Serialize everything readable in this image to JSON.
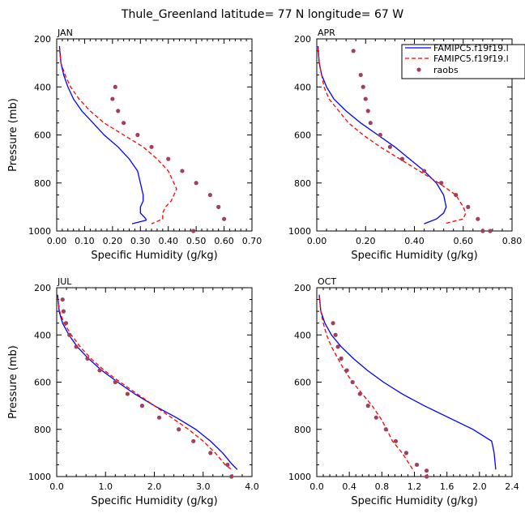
{
  "figure": {
    "title": "Thule_Greenland   latitude= 77 N longitude= 67 W"
  },
  "legend": {
    "entries": [
      {
        "label": "FAMIPC5.f19f19.l",
        "color": "#0000ff",
        "style": "solid"
      },
      {
        "label": "FAMIPC5.f19f19.l",
        "color": "#ff0000",
        "style": "dashed"
      },
      {
        "label": "raobs",
        "color": "#a0405a",
        "style": "dots"
      }
    ]
  },
  "chart_data": [
    {
      "type": "line",
      "panel": "JAN",
      "title": "JAN",
      "xlabel": "Specific Humidity (g/kg)",
      "ylabel": "Pressure (mb)",
      "xlim": [
        0,
        0.7
      ],
      "ylim": [
        1000,
        200
      ],
      "xticks": [
        "0.00",
        "0.10",
        "0.20",
        "0.30",
        "0.40",
        "0.50",
        "0.60",
        "0.70"
      ],
      "yticks": [
        "200",
        "400",
        "600",
        "800",
        "1000"
      ],
      "series": [
        {
          "name": "FAMIPC5.f19f19.l (solid)",
          "color": "#0000ff",
          "dash": "solid",
          "x": [
            0.01,
            0.015,
            0.025,
            0.04,
            0.06,
            0.09,
            0.13,
            0.17,
            0.22,
            0.26,
            0.29,
            0.3,
            0.31,
            0.31,
            0.3,
            0.3,
            0.31,
            0.32,
            0.32,
            0.27
          ],
          "y": [
            230,
            300,
            350,
            400,
            450,
            500,
            550,
            600,
            650,
            700,
            750,
            800,
            850,
            875,
            900,
            925,
            937,
            950,
            955,
            970
          ]
        },
        {
          "name": "FAMIPC5.f19f19.l (dashed)",
          "color": "#ff0000",
          "dash": "dashed",
          "x": [
            0.01,
            0.015,
            0.03,
            0.05,
            0.08,
            0.12,
            0.17,
            0.24,
            0.31,
            0.36,
            0.4,
            0.42,
            0.43,
            0.42,
            0.41,
            0.39,
            0.38,
            0.38,
            0.34
          ],
          "y": [
            240,
            300,
            350,
            400,
            450,
            500,
            550,
            600,
            650,
            700,
            750,
            800,
            825,
            850,
            875,
            900,
            925,
            950,
            970
          ]
        },
        {
          "name": "raobs",
          "color": "#a0405a",
          "dash": "dots",
          "x": [
            0.21,
            0.2,
            0.22,
            0.24,
            0.29,
            0.34,
            0.4,
            0.45,
            0.5,
            0.55,
            0.58,
            0.6,
            0.49
          ],
          "y": [
            400,
            450,
            500,
            550,
            600,
            650,
            700,
            750,
            800,
            850,
            900,
            950,
            1000
          ]
        }
      ]
    },
    {
      "type": "line",
      "panel": "APR",
      "title": "APR",
      "xlabel": "Specific Humidity (g/kg)",
      "ylabel": "",
      "xlim": [
        0,
        0.8
      ],
      "ylim": [
        1000,
        200
      ],
      "xticks": [
        "0.00",
        "0.20",
        "0.40",
        "0.60",
        "0.80"
      ],
      "yticks": [
        "200",
        "400",
        "600",
        "800",
        "1000"
      ],
      "series": [
        {
          "name": "FAMIPC5.f19f19.l (solid)",
          "color": "#0000ff",
          "dash": "solid",
          "x": [
            0.005,
            0.01,
            0.02,
            0.04,
            0.07,
            0.12,
            0.18,
            0.25,
            0.32,
            0.38,
            0.44,
            0.49,
            0.52,
            0.53,
            0.52,
            0.49,
            0.44
          ],
          "y": [
            230,
            300,
            350,
            400,
            450,
            500,
            550,
            600,
            650,
            700,
            750,
            800,
            850,
            900,
            925,
            950,
            970
          ]
        },
        {
          "name": "FAMIPC5.f19f19.l (dashed)",
          "color": "#ff0000",
          "dash": "dashed",
          "x": [
            0.005,
            0.01,
            0.02,
            0.03,
            0.05,
            0.09,
            0.13,
            0.19,
            0.26,
            0.34,
            0.42,
            0.5,
            0.57,
            0.6,
            0.61,
            0.6,
            0.52
          ],
          "y": [
            240,
            300,
            350,
            400,
            450,
            500,
            550,
            600,
            650,
            700,
            750,
            800,
            850,
            900,
            925,
            950,
            970
          ]
        },
        {
          "name": "raobs",
          "color": "#a0405a",
          "dash": "dots",
          "x": [
            0.15,
            0.18,
            0.19,
            0.2,
            0.21,
            0.22,
            0.26,
            0.3,
            0.35,
            0.44,
            0.51,
            0.57,
            0.62,
            0.66,
            0.71,
            0.68
          ],
          "y": [
            250,
            350,
            400,
            450,
            500,
            550,
            600,
            650,
            700,
            750,
            800,
            850,
            900,
            950,
            1000,
            1000
          ]
        }
      ]
    },
    {
      "type": "line",
      "panel": "JUL",
      "title": "JUL",
      "xlabel": "Specific Humidity (g/kg)",
      "ylabel": "Pressure (mb)",
      "xlim": [
        0,
        4.0
      ],
      "ylim": [
        1000,
        200
      ],
      "xticks": [
        "0.0",
        "1.0",
        "2.0",
        "3.0",
        "4.0"
      ],
      "yticks": [
        "200",
        "400",
        "600",
        "800",
        "1000"
      ],
      "series": [
        {
          "name": "FAMIPC5.f19f19.l (solid)",
          "color": "#0000ff",
          "dash": "solid",
          "x": [
            0.02,
            0.05,
            0.12,
            0.25,
            0.42,
            0.65,
            0.92,
            1.25,
            1.6,
            2.0,
            2.45,
            2.85,
            3.15,
            3.4,
            3.6,
            3.7
          ],
          "y": [
            230,
            300,
            350,
            400,
            450,
            500,
            550,
            600,
            650,
            700,
            750,
            800,
            850,
            900,
            950,
            970
          ]
        },
        {
          "name": "FAMIPC5.f19f19.l (dashed)",
          "color": "#ff0000",
          "dash": "dashed",
          "x": [
            0.02,
            0.06,
            0.15,
            0.3,
            0.48,
            0.7,
            0.97,
            1.3,
            1.65,
            2.0,
            2.35,
            2.7,
            3.0,
            3.25,
            3.45,
            3.58
          ],
          "y": [
            240,
            300,
            350,
            400,
            450,
            500,
            550,
            600,
            650,
            700,
            750,
            800,
            850,
            900,
            950,
            970
          ]
        },
        {
          "name": "raobs",
          "color": "#a0405a",
          "dash": "dots",
          "x": [
            0.12,
            0.14,
            0.19,
            0.26,
            0.4,
            0.63,
            0.88,
            1.2,
            1.45,
            1.75,
            2.1,
            2.5,
            2.8,
            3.15,
            3.5,
            3.58
          ],
          "y": [
            250,
            300,
            350,
            400,
            450,
            500,
            550,
            600,
            650,
            700,
            750,
            800,
            850,
            900,
            950,
            1000
          ]
        }
      ]
    },
    {
      "type": "line",
      "panel": "OCT",
      "title": "OCT",
      "xlabel": "Specific Humidity (g/kg)",
      "ylabel": "",
      "xlim": [
        0,
        2.4
      ],
      "ylim": [
        1000,
        200
      ],
      "xticks": [
        "0.0",
        "0.4",
        "0.8",
        "1.2",
        "1.6",
        "2.0",
        "2.4"
      ],
      "yticks": [
        "200",
        "400",
        "600",
        "800",
        "1000"
      ],
      "series": [
        {
          "name": "FAMIPC5.f19f19.l (solid)",
          "color": "#0000ff",
          "dash": "solid",
          "x": [
            0.03,
            0.05,
            0.1,
            0.18,
            0.3,
            0.45,
            0.62,
            0.82,
            1.05,
            1.32,
            1.62,
            1.92,
            2.15,
            2.18,
            2.2
          ],
          "y": [
            230,
            300,
            350,
            400,
            450,
            500,
            550,
            600,
            650,
            700,
            750,
            800,
            850,
            900,
            970
          ]
        },
        {
          "name": "FAMIPC5.f19f19.l (dashed)",
          "color": "#ff0000",
          "dash": "dashed",
          "x": [
            0.03,
            0.05,
            0.08,
            0.12,
            0.18,
            0.26,
            0.34,
            0.44,
            0.56,
            0.68,
            0.78,
            0.86,
            0.93,
            1.05,
            1.18
          ],
          "y": [
            240,
            300,
            350,
            400,
            450,
            500,
            550,
            600,
            650,
            700,
            750,
            800,
            850,
            900,
            970
          ]
        },
        {
          "name": "raobs",
          "color": "#a0405a",
          "dash": "dots",
          "x": [
            0.2,
            0.23,
            0.26,
            0.3,
            0.37,
            0.44,
            0.53,
            0.63,
            0.73,
            0.85,
            0.97,
            1.1,
            1.23,
            1.35,
            1.35
          ],
          "y": [
            350,
            400,
            450,
            500,
            550,
            600,
            650,
            700,
            750,
            800,
            850,
            900,
            950,
            975,
            1000
          ]
        }
      ]
    }
  ]
}
